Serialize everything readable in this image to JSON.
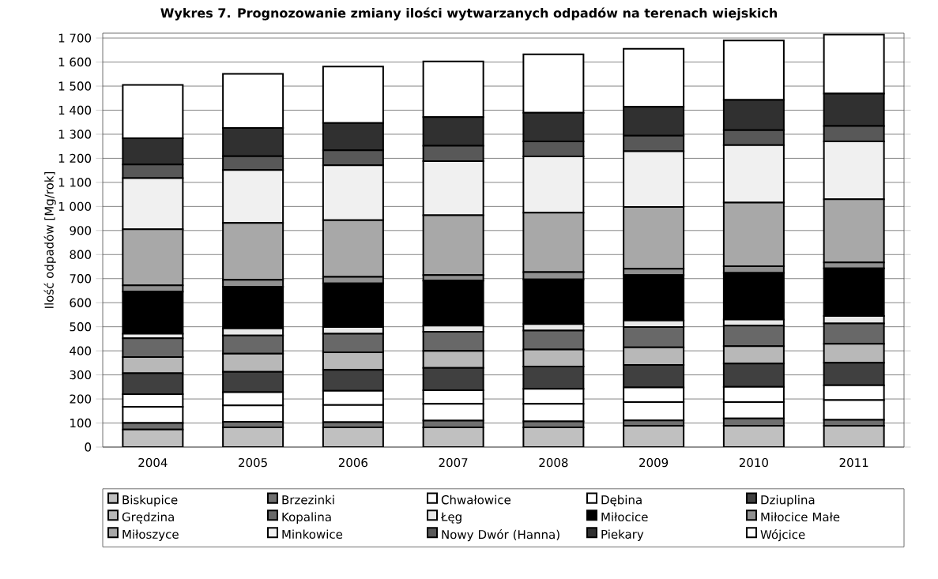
{
  "chart_data": {
    "type": "bar",
    "stacked": true,
    "title": "Wykres 7. Prognozowanie zmiany ilości wytwarzanych odpadów na terenach wiejskich",
    "ylabel": "Ilość odpadów [Mg/rok]",
    "categories": [
      "2004",
      "2005",
      "2006",
      "2007",
      "2008",
      "2009",
      "2010",
      "2011"
    ],
    "ylim": [
      0,
      1720
    ],
    "yticks": [
      0,
      100,
      200,
      300,
      400,
      500,
      600,
      700,
      800,
      900,
      {
        "value": 1000,
        "label": "1 000"
      },
      {
        "value": 1100,
        "label": "1 100"
      },
      {
        "value": 1200,
        "label": "1 200"
      },
      {
        "value": 1300,
        "label": "1 300"
      },
      {
        "value": 1400,
        "label": "1 400"
      },
      {
        "value": 1500,
        "label": "1 500"
      },
      {
        "value": 1600,
        "label": "1 600"
      },
      {
        "value": 1700,
        "label": "1 700"
      }
    ],
    "grid": "y",
    "legend": "bottom",
    "series": [
      {
        "name": "Biskupice",
        "color": "#c0c0c0",
        "values": [
          73,
          82,
          82,
          82,
          82,
          89,
          89,
          89
        ]
      },
      {
        "name": "Brzezinki",
        "color": "#707070",
        "values": [
          27,
          23,
          21,
          28,
          25,
          22,
          30,
          24
        ]
      },
      {
        "name": "Chwałowice",
        "color": "#ffffff",
        "values": [
          67,
          68,
          72,
          70,
          73,
          76,
          68,
          82
        ]
      },
      {
        "name": "Dębina",
        "color": "#ffffff",
        "values": [
          53,
          55,
          59,
          56,
          62,
          61,
          63,
          62
        ]
      },
      {
        "name": "Dziuplina",
        "color": "#404040",
        "values": [
          87,
          85,
          87,
          93,
          93,
          93,
          97,
          93
        ]
      },
      {
        "name": "Grędzina",
        "color": "#b8b8b8",
        "values": [
          67,
          75,
          73,
          71,
          70,
          73,
          72,
          79
        ]
      },
      {
        "name": "Kopalina",
        "color": "#686868",
        "values": [
          78,
          76,
          77,
          79,
          79,
          85,
          86,
          85
        ]
      },
      {
        "name": "Łęg",
        "color": "#e8e8e8",
        "values": [
          19,
          29,
          28,
          26,
          27,
          27,
          25,
          31
        ]
      },
      {
        "name": "Miłocice",
        "color": "#000000",
        "values": [
          175,
          173,
          181,
          187,
          186,
          189,
          194,
          198
        ]
      },
      {
        "name": "Miłocice Małe",
        "color": "#909090",
        "values": [
          26,
          29,
          27,
          23,
          30,
          26,
          28,
          24
        ]
      },
      {
        "name": "Miłoszyce",
        "color": "#a8a8a8",
        "values": [
          233,
          236,
          236,
          248,
          247,
          257,
          264,
          263
        ]
      },
      {
        "name": "Minkowice",
        "color": "#f0f0f0",
        "values": [
          213,
          220,
          228,
          225,
          234,
          231,
          239,
          240
        ]
      },
      {
        "name": "Nowy Dwór (Hanna)",
        "color": "#585858",
        "values": [
          56,
          58,
          62,
          64,
          62,
          65,
          62,
          64
        ]
      },
      {
        "name": "Piekary",
        "color": "#303030",
        "values": [
          109,
          117,
          114,
          119,
          119,
          120,
          126,
          135
        ]
      },
      {
        "name": "Wójcice",
        "color": "#ffffff",
        "values": [
          222,
          225,
          234,
          232,
          243,
          241,
          247,
          245
        ]
      }
    ]
  }
}
